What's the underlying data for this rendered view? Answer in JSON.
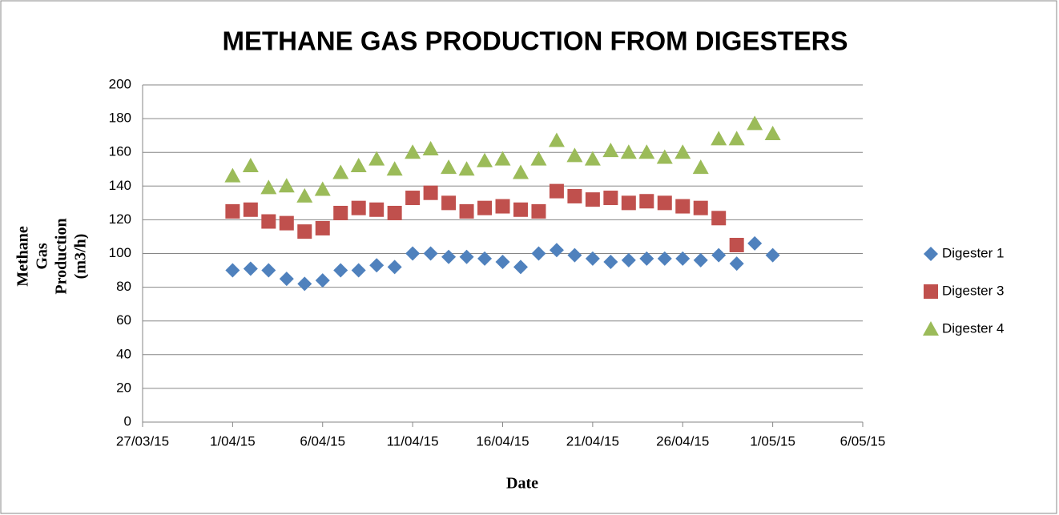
{
  "chart_data": {
    "type": "scatter",
    "title": "METHANE GAS PRODUCTION FROM DIGESTERS",
    "x_label": "Date",
    "y_label": "Methane Gas Production (m3/h)",
    "x": [
      "2015-04-01",
      "2015-04-02",
      "2015-04-03",
      "2015-04-04",
      "2015-04-05",
      "2015-04-06",
      "2015-04-07",
      "2015-04-08",
      "2015-04-09",
      "2015-04-10",
      "2015-04-11",
      "2015-04-12",
      "2015-04-13",
      "2015-04-14",
      "2015-04-15",
      "2015-04-16",
      "2015-04-17",
      "2015-04-18",
      "2015-04-19",
      "2015-04-20",
      "2015-04-21",
      "2015-04-22",
      "2015-04-23",
      "2015-04-24",
      "2015-04-25",
      "2015-04-26",
      "2015-04-27",
      "2015-04-28",
      "2015-04-29",
      "2015-04-30",
      "2015-05-01"
    ],
    "series": [
      {
        "name": "Digester 1",
        "color": "#4f81bd",
        "marker": "diamond",
        "values": [
          90,
          91,
          90,
          85,
          82,
          84,
          90,
          90,
          93,
          92,
          100,
          100,
          98,
          98,
          97,
          95,
          92,
          100,
          102,
          99,
          97,
          95,
          96,
          97,
          97,
          97,
          96,
          99,
          94,
          106,
          99
        ]
      },
      {
        "name": "Digester 3",
        "color": "#c0504d",
        "marker": "square",
        "values": [
          125,
          126,
          119,
          118,
          113,
          115,
          124,
          127,
          126,
          124,
          133,
          136,
          130,
          125,
          127,
          128,
          126,
          125,
          137,
          134,
          132,
          133,
          130,
          131,
          130,
          128,
          127,
          121,
          105,
          null,
          null
        ]
      },
      {
        "name": "Digester 4",
        "color": "#9bbb59",
        "marker": "triangle",
        "values": [
          146,
          152,
          139,
          140,
          134,
          138,
          148,
          152,
          156,
          150,
          160,
          162,
          151,
          150,
          155,
          156,
          148,
          156,
          167,
          158,
          156,
          161,
          160,
          160,
          157,
          160,
          151,
          168,
          168,
          177,
          171
        ]
      }
    ],
    "xlim": [
      "2015-03-27",
      "2015-05-06"
    ],
    "xticks": [
      {
        "value": "2015-03-27",
        "label": "27/03/15"
      },
      {
        "value": "2015-04-01",
        "label": "1/04/15"
      },
      {
        "value": "2015-04-06",
        "label": "6/04/15"
      },
      {
        "value": "2015-04-11",
        "label": "11/04/15"
      },
      {
        "value": "2015-04-16",
        "label": "16/04/15"
      },
      {
        "value": "2015-04-21",
        "label": "21/04/15"
      },
      {
        "value": "2015-04-26",
        "label": "26/04/15"
      },
      {
        "value": "2015-05-01",
        "label": "1/05/15"
      },
      {
        "value": "2015-05-06",
        "label": "6/05/15"
      }
    ],
    "ylim": [
      0,
      200
    ],
    "yticks": [
      0,
      20,
      40,
      60,
      80,
      100,
      120,
      140,
      160,
      180,
      200
    ],
    "grid": true,
    "legend": "right"
  }
}
